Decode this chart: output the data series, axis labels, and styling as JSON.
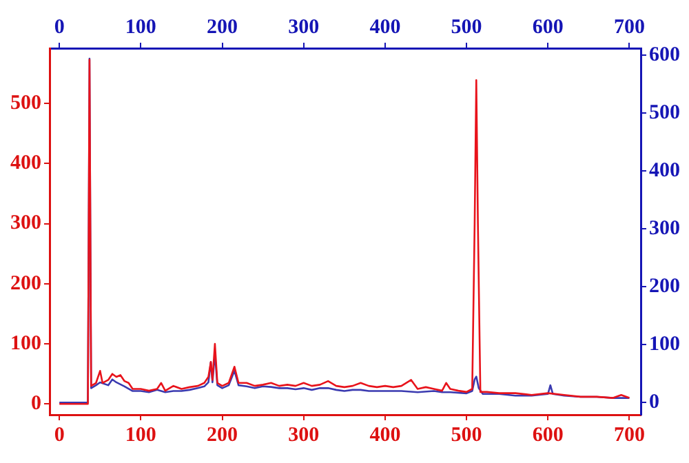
{
  "chart_data": {
    "type": "line",
    "xlim": [
      -12,
      714
    ],
    "xticks": [
      0,
      100,
      200,
      300,
      400,
      500,
      600,
      700
    ],
    "x2lim": [
      -12,
      714
    ],
    "x2ticks": [
      0,
      100,
      200,
      300,
      400,
      500,
      600,
      700
    ],
    "ylim": [
      -18,
      592
    ],
    "yticks": [
      0,
      100,
      200,
      300,
      400,
      500
    ],
    "y2lim": [
      -21,
      612
    ],
    "y2ticks": [
      0,
      100,
      200,
      300,
      400,
      500,
      600
    ],
    "grid": false,
    "legend": false,
    "marker": "none",
    "line_style": "solid",
    "series": [
      {
        "color": "#e8131b",
        "x": [
          0,
          35,
          37,
          39,
          45,
          50,
          53,
          60,
          65,
          70,
          75,
          80,
          85,
          90,
          100,
          110,
          120,
          125,
          130,
          140,
          150,
          160,
          170,
          178,
          183,
          186,
          188,
          191,
          194,
          200,
          208,
          215,
          220,
          230,
          240,
          250,
          260,
          270,
          280,
          290,
          300,
          310,
          320,
          330,
          340,
          350,
          360,
          370,
          380,
          390,
          400,
          410,
          420,
          432,
          440,
          450,
          460,
          470,
          475,
          480,
          490,
          500,
          507,
          510,
          512,
          514,
          517,
          525,
          540,
          560,
          580,
          600,
          620,
          640,
          660,
          680,
          690,
          700
        ],
        "values": [
          0,
          0,
          573,
          30,
          35,
          55,
          35,
          40,
          50,
          45,
          48,
          38,
          35,
          25,
          25,
          22,
          25,
          35,
          22,
          30,
          25,
          28,
          30,
          35,
          45,
          70,
          40,
          100,
          35,
          30,
          35,
          62,
          35,
          35,
          30,
          32,
          35,
          30,
          32,
          30,
          35,
          30,
          32,
          38,
          30,
          28,
          30,
          35,
          30,
          28,
          30,
          28,
          30,
          40,
          25,
          28,
          25,
          22,
          35,
          25,
          22,
          20,
          25,
          300,
          539,
          300,
          20,
          20,
          18,
          18,
          15,
          18,
          15,
          12,
          12,
          10,
          15,
          10
        ]
      },
      {
        "color": "#3a3ab0",
        "axis": "y2",
        "x": [
          0,
          35,
          37,
          39,
          45,
          50,
          60,
          65,
          70,
          80,
          90,
          100,
          110,
          120,
          130,
          140,
          150,
          160,
          170,
          178,
          183,
          186,
          188,
          191,
          194,
          200,
          208,
          215,
          220,
          230,
          240,
          250,
          260,
          270,
          280,
          290,
          300,
          310,
          320,
          330,
          340,
          350,
          360,
          370,
          380,
          390,
          400,
          420,
          440,
          460,
          470,
          480,
          500,
          507,
          510,
          512,
          515,
          520,
          540,
          560,
          580,
          600,
          603,
          606,
          620,
          640,
          660,
          680,
          700
        ],
        "values": [
          0,
          0,
          594,
          25,
          30,
          35,
          30,
          40,
          35,
          28,
          20,
          20,
          18,
          22,
          18,
          20,
          20,
          22,
          25,
          28,
          35,
          70,
          35,
          85,
          30,
          25,
          30,
          55,
          30,
          28,
          25,
          28,
          27,
          25,
          25,
          23,
          25,
          22,
          25,
          25,
          22,
          20,
          22,
          22,
          20,
          20,
          20,
          20,
          18,
          20,
          18,
          18,
          16,
          20,
          40,
          45,
          25,
          15,
          15,
          12,
          12,
          15,
          30,
          15,
          12,
          10,
          10,
          8,
          8
        ]
      }
    ]
  }
}
